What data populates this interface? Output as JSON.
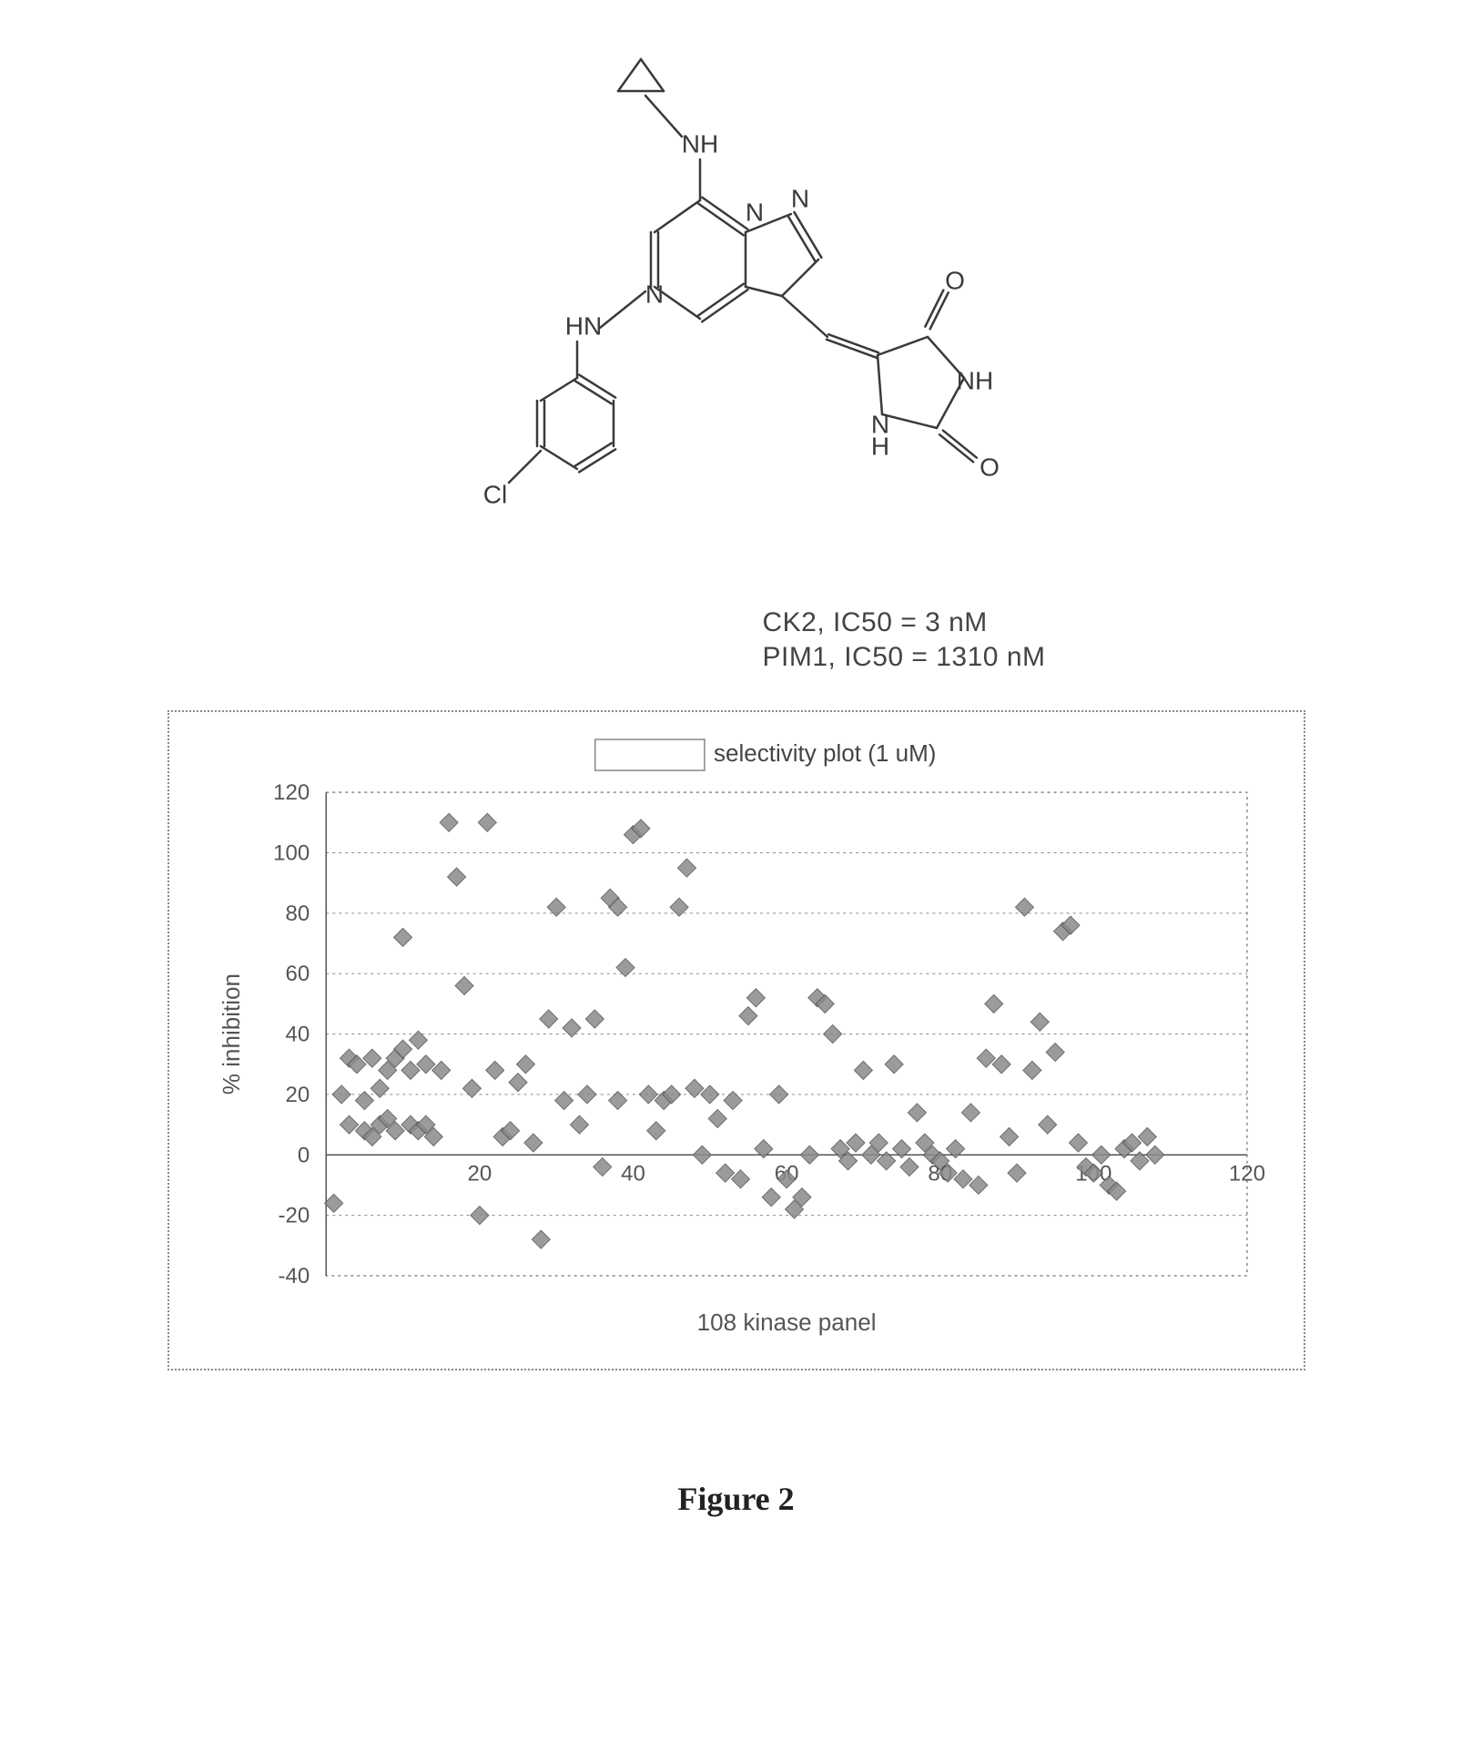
{
  "structure": {
    "atom_labels": [
      "NH",
      "HN",
      "N",
      "N",
      "N",
      "O",
      "NH",
      "N",
      "H",
      "O",
      "Cl"
    ],
    "ic50_lines": [
      "CK2, IC50 = 3 nM",
      "PIM1, IC50 = 1310 nM"
    ],
    "bond_color": "#3a3a3a",
    "label_color": "#3a3a3a",
    "bond_width": 2.5,
    "label_fontsize": 28,
    "font_family": "Arial, Helvetica, sans-serif"
  },
  "chart": {
    "type": "scatter",
    "title": "selectivity plot (1 uM)",
    "title_fontsize": 26,
    "xlabel": "108 kinase panel",
    "ylabel": "% inhibition",
    "label_fontsize": 26,
    "tick_fontsize": 24,
    "xlim": [
      0,
      120
    ],
    "ylim": [
      -40,
      120
    ],
    "ytick_step": 20,
    "xtick_step": 20,
    "grid_color": "#8a8a8a",
    "grid_dash": "3,4",
    "axis_color": "#555555",
    "border_color": "#888888",
    "background_color": "#ffffff",
    "legend_box_color": "#888888",
    "marker": {
      "shape": "diamond",
      "size": 10,
      "fill": "#8a8a8a",
      "stroke": "#555555",
      "opacity": 0.85
    },
    "points": [
      [
        1,
        -16
      ],
      [
        2,
        20
      ],
      [
        3,
        10
      ],
      [
        3,
        32
      ],
      [
        4,
        30
      ],
      [
        5,
        8
      ],
      [
        5,
        18
      ],
      [
        6,
        6
      ],
      [
        6,
        32
      ],
      [
        7,
        10
      ],
      [
        7,
        22
      ],
      [
        8,
        28
      ],
      [
        8,
        12
      ],
      [
        9,
        8
      ],
      [
        9,
        32
      ],
      [
        10,
        72
      ],
      [
        10,
        35
      ],
      [
        11,
        10
      ],
      [
        11,
        28
      ],
      [
        12,
        8
      ],
      [
        12,
        38
      ],
      [
        13,
        10
      ],
      [
        13,
        30
      ],
      [
        14,
        6
      ],
      [
        15,
        28
      ],
      [
        16,
        110
      ],
      [
        17,
        92
      ],
      [
        18,
        56
      ],
      [
        19,
        22
      ],
      [
        20,
        -20
      ],
      [
        21,
        110
      ],
      [
        22,
        28
      ],
      [
        23,
        6
      ],
      [
        24,
        8
      ],
      [
        25,
        24
      ],
      [
        26,
        30
      ],
      [
        27,
        4
      ],
      [
        28,
        -28
      ],
      [
        29,
        45
      ],
      [
        30,
        82
      ],
      [
        31,
        18
      ],
      [
        32,
        42
      ],
      [
        33,
        10
      ],
      [
        34,
        20
      ],
      [
        35,
        45
      ],
      [
        36,
        -4
      ],
      [
        37,
        85
      ],
      [
        38,
        82
      ],
      [
        38,
        18
      ],
      [
        39,
        62
      ],
      [
        40,
        106
      ],
      [
        41,
        108
      ],
      [
        42,
        20
      ],
      [
        43,
        8
      ],
      [
        44,
        18
      ],
      [
        45,
        20
      ],
      [
        46,
        82
      ],
      [
        47,
        95
      ],
      [
        48,
        22
      ],
      [
        49,
        0
      ],
      [
        50,
        20
      ],
      [
        51,
        12
      ],
      [
        52,
        -6
      ],
      [
        53,
        18
      ],
      [
        54,
        -8
      ],
      [
        55,
        46
      ],
      [
        56,
        52
      ],
      [
        57,
        2
      ],
      [
        58,
        -14
      ],
      [
        59,
        20
      ],
      [
        60,
        -8
      ],
      [
        61,
        -18
      ],
      [
        62,
        -14
      ],
      [
        63,
        0
      ],
      [
        64,
        52
      ],
      [
        65,
        50
      ],
      [
        66,
        40
      ],
      [
        67,
        2
      ],
      [
        68,
        -2
      ],
      [
        69,
        4
      ],
      [
        70,
        28
      ],
      [
        71,
        0
      ],
      [
        72,
        4
      ],
      [
        73,
        -2
      ],
      [
        74,
        30
      ],
      [
        75,
        2
      ],
      [
        76,
        -4
      ],
      [
        77,
        14
      ],
      [
        78,
        4
      ],
      [
        79,
        0
      ],
      [
        80,
        -2
      ],
      [
        81,
        -6
      ],
      [
        82,
        2
      ],
      [
        83,
        -8
      ],
      [
        84,
        14
      ],
      [
        85,
        -10
      ],
      [
        86,
        32
      ],
      [
        87,
        50
      ],
      [
        88,
        30
      ],
      [
        89,
        6
      ],
      [
        90,
        -6
      ],
      [
        91,
        82
      ],
      [
        92,
        28
      ],
      [
        93,
        44
      ],
      [
        94,
        10
      ],
      [
        95,
        34
      ],
      [
        96,
        74
      ],
      [
        97,
        76
      ],
      [
        98,
        4
      ],
      [
        99,
        -4
      ],
      [
        100,
        -6
      ],
      [
        101,
        0
      ],
      [
        102,
        -10
      ],
      [
        103,
        -12
      ],
      [
        104,
        2
      ],
      [
        105,
        4
      ],
      [
        106,
        -2
      ],
      [
        107,
        6
      ],
      [
        108,
        0
      ]
    ]
  },
  "caption": "Figure 2"
}
